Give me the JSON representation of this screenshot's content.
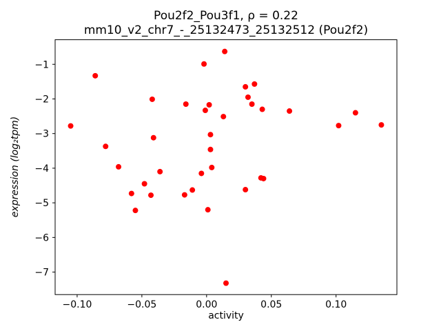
{
  "figure": {
    "title": "Pou2f2_Pou3f1, ρ = 0.22",
    "subtitle": "mm10_v2_chr7_-_25132473_25132512 (Pou2f2)",
    "xlabel": "activity",
    "ylabel": "expression (log₂tpm)"
  },
  "chart_data": {
    "type": "scatter",
    "title": "Pou2f2_Pou3f1, ρ = 0.22",
    "subtitle": "mm10_v2_chr7_-_25132473_25132512 (Pou2f2)",
    "xlabel": "activity",
    "ylabel": "expression (log2 tpm)",
    "marker_color": "#ff0000",
    "marker_radius": 4,
    "grid": false,
    "legend": "none",
    "xlim": [
      -0.117,
      0.147
    ],
    "ylim": [
      -7.65,
      -0.29
    ],
    "xticks": [
      {
        "v": -0.1,
        "label": "−0.10"
      },
      {
        "v": -0.05,
        "label": "−0.05"
      },
      {
        "v": 0.0,
        "label": "0.00"
      },
      {
        "v": 0.05,
        "label": "0.05"
      },
      {
        "v": 0.1,
        "label": "0.10"
      }
    ],
    "yticks": [
      {
        "v": -7,
        "label": "−7"
      },
      {
        "v": -6,
        "label": "−6"
      },
      {
        "v": -5,
        "label": "−5"
      },
      {
        "v": -4,
        "label": "−4"
      },
      {
        "v": -3,
        "label": "−3"
      },
      {
        "v": -2,
        "label": "−2"
      },
      {
        "v": -1,
        "label": "−1"
      }
    ],
    "points": [
      [
        -0.105,
        -2.78
      ],
      [
        -0.086,
        -1.33
      ],
      [
        -0.078,
        -3.37
      ],
      [
        -0.068,
        -3.96
      ],
      [
        -0.058,
        -4.73
      ],
      [
        -0.055,
        -5.22
      ],
      [
        -0.048,
        -4.45
      ],
      [
        -0.042,
        -2.01
      ],
      [
        -0.041,
        -3.12
      ],
      [
        -0.043,
        -4.78
      ],
      [
        -0.036,
        -4.1
      ],
      [
        -0.016,
        -2.15
      ],
      [
        -0.017,
        -4.77
      ],
      [
        -0.011,
        -4.63
      ],
      [
        -0.004,
        -4.15
      ],
      [
        -0.002,
        -0.99
      ],
      [
        -0.001,
        -2.33
      ],
      [
        0.002,
        -2.17
      ],
      [
        0.003,
        -3.03
      ],
      [
        0.003,
        -3.46
      ],
      [
        0.004,
        -3.98
      ],
      [
        0.001,
        -5.2
      ],
      [
        0.014,
        -0.63
      ],
      [
        0.013,
        -2.51
      ],
      [
        0.015,
        -7.32
      ],
      [
        0.03,
        -1.65
      ],
      [
        0.032,
        -1.95
      ],
      [
        0.037,
        -1.57
      ],
      [
        0.035,
        -2.15
      ],
      [
        0.03,
        -4.62
      ],
      [
        0.042,
        -4.28
      ],
      [
        0.044,
        -4.3
      ],
      [
        0.043,
        -2.3
      ],
      [
        0.064,
        -2.35
      ],
      [
        0.102,
        -2.77
      ],
      [
        0.115,
        -2.4
      ],
      [
        0.135,
        -2.75
      ]
    ]
  }
}
